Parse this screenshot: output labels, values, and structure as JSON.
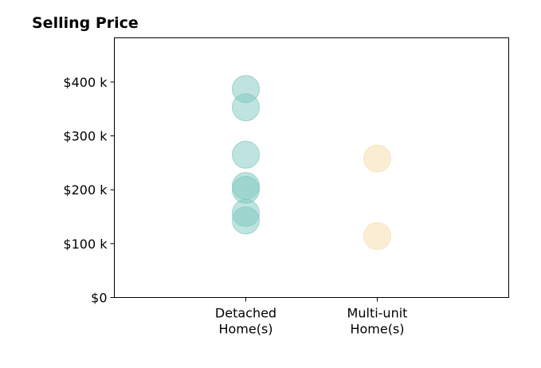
{
  "chart_data": {
    "type": "scatter",
    "title": "Selling Price",
    "xlabel": "",
    "ylabel": "",
    "categories": [
      [
        "Detached",
        "Home(s)"
      ],
      [
        "Multi-unit",
        "Home(s)"
      ]
    ],
    "yticks": [
      {
        "value": 0,
        "label": "$0"
      },
      {
        "value": 100000,
        "label": "$100 k"
      },
      {
        "value": 200000,
        "label": "$200 k"
      },
      {
        "value": 300000,
        "label": "$300 k"
      },
      {
        "value": 400000,
        "label": "$400 k"
      }
    ],
    "ylim": [
      0,
      482000
    ],
    "xlim": [
      -1,
      2
    ],
    "grid": false,
    "series": [
      {
        "category_index": 0,
        "color": "#7fc8bf",
        "opacity": 0.5,
        "values": [
          387000,
          353000,
          265000,
          207000,
          200000,
          157000,
          143000
        ]
      },
      {
        "category_index": 1,
        "color": "#f5deb1",
        "opacity": 0.55,
        "values": [
          258000,
          114000
        ]
      }
    ]
  }
}
